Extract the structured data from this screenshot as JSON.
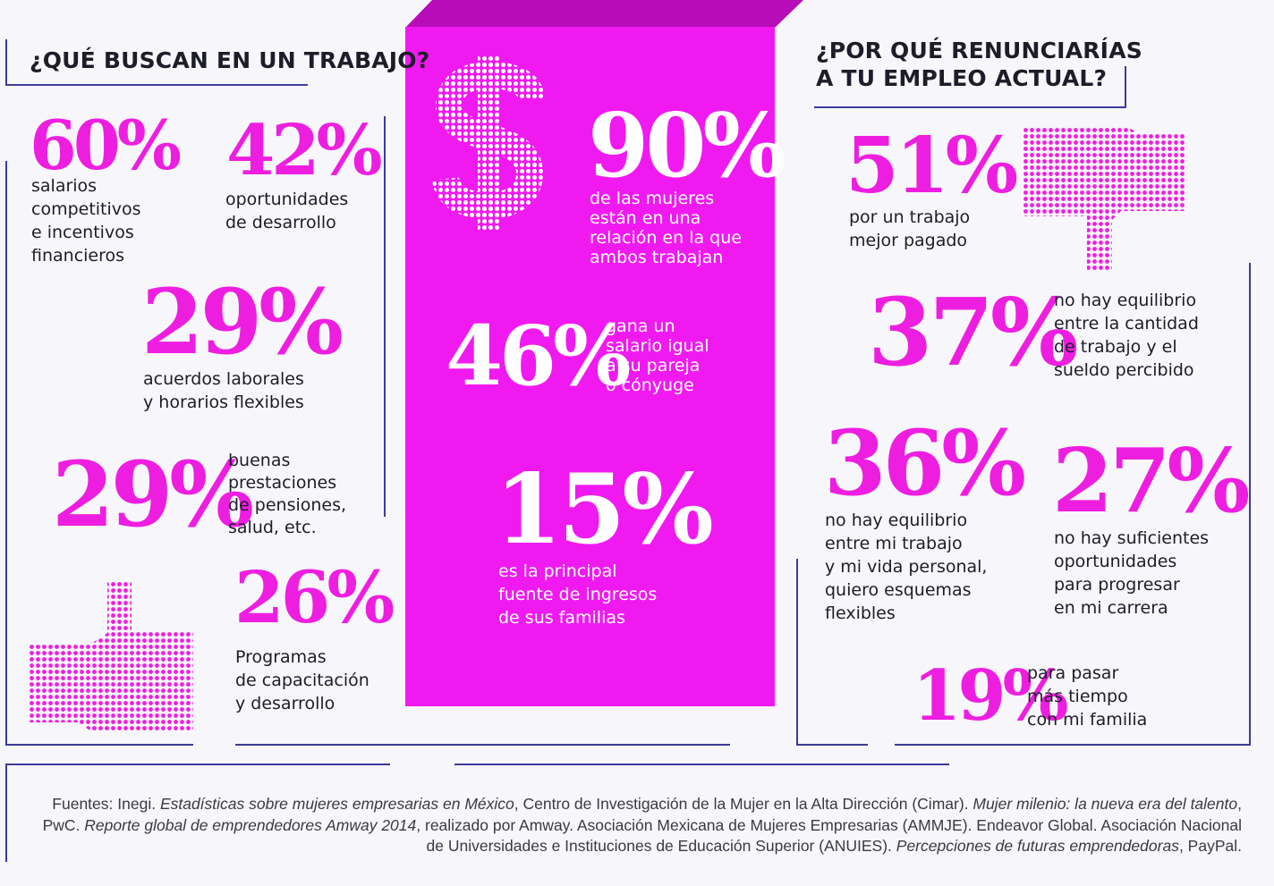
{
  "colors": {
    "accent": "#ee1ee0",
    "column": "#f01af0",
    "lines": "#3b3a9a",
    "text": "#1d1d2a"
  },
  "left": {
    "heading": "¿QUÉ BUSCAN EN UN TRABAJO?",
    "stats": [
      {
        "pct": "60%",
        "label": "salarios\ncompetitivos\ne incentivos\nfinancieros"
      },
      {
        "pct": "42%",
        "label": "oportunidades\nde desarrollo"
      },
      {
        "pct": "29%",
        "label": "acuerdos laborales\ny horarios flexibles"
      },
      {
        "pct": "29%",
        "label": "buenas\nprestaciones\nde pensiones,\nsalud, etc."
      },
      {
        "pct": "26%",
        "label": "Programas\nde capacitación\ny desarrollo"
      }
    ],
    "icon": "thumbs-up-icon"
  },
  "center": {
    "icon": "dollar-sign-icon",
    "stats": [
      {
        "pct": "90%",
        "label": "de las mujeres\nestán en una\nrelación en la que\nambos trabajan"
      },
      {
        "pct": "46%",
        "label": "gana un\nsalario igual\na su pareja\no cónyuge"
      },
      {
        "pct": "15%",
        "label": "es la principal\nfuente de ingresos\nde sus  familias"
      }
    ]
  },
  "right": {
    "heading": "¿POR QUÉ RENUNCIARÍAS\nA TU EMPLEO ACTUAL?",
    "stats": [
      {
        "pct": "51%",
        "label": "por un trabajo\nmejor pagado"
      },
      {
        "pct": "37%",
        "label": "no hay equilibrio\nentre la cantidad\nde trabajo y el\nsueldo percibido"
      },
      {
        "pct": "36%",
        "label": "no hay equilibrio\nentre mi trabajo\ny mi vida personal,\nquiero esquemas\nflexibles"
      },
      {
        "pct": "27%",
        "label": "no hay suficientes\noportunidades\npara progresar\nen mi carrera"
      },
      {
        "pct": "19%",
        "label": "para pasar\nmás tiempo\ncon mi familia"
      }
    ],
    "icon": "thumbs-down-icon"
  },
  "footer": {
    "p1": "Fuentes: Inegi. ",
    "i1": "Estadísticas sobre mujeres empresarias en México",
    "p2": ", Centro de Investigación de la Mujer en la Alta Dirección (Cimar). ",
    "i2": "Mujer milenio: la nueva era del talento",
    "p3": ", PwC. ",
    "i3": "Reporte global de emprendedores Amway 2014",
    "p4": ", realizado por Amway. Asociación Mexicana de Mujeres Empresarias (AMMJE). Endeavor Global. Asociación Nacional de Universidades e Instituciones de Educación Superior (ANUIES). ",
    "i4": "Percepciones de futuras emprendedoras",
    "p5": ", PayPal."
  }
}
